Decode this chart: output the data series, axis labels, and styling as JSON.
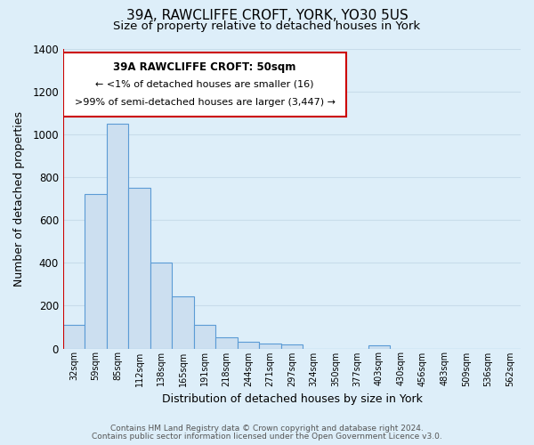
{
  "title": "39A, RAWCLIFFE CROFT, YORK, YO30 5US",
  "subtitle": "Size of property relative to detached houses in York",
  "xlabel": "Distribution of detached houses by size in York",
  "ylabel": "Number of detached properties",
  "categories": [
    "32sqm",
    "59sqm",
    "85sqm",
    "112sqm",
    "138sqm",
    "165sqm",
    "191sqm",
    "218sqm",
    "244sqm",
    "271sqm",
    "297sqm",
    "324sqm",
    "350sqm",
    "377sqm",
    "403sqm",
    "430sqm",
    "456sqm",
    "483sqm",
    "509sqm",
    "536sqm",
    "562sqm"
  ],
  "values": [
    110,
    720,
    1050,
    750,
    400,
    245,
    110,
    50,
    30,
    25,
    20,
    0,
    0,
    0,
    15,
    0,
    0,
    0,
    0,
    0,
    0
  ],
  "bar_color": "#ccdff0",
  "bar_edge_color": "#5b9bd5",
  "highlight_color": "#cc0000",
  "ylim": [
    0,
    1400
  ],
  "yticks": [
    0,
    200,
    400,
    600,
    800,
    1000,
    1200,
    1400
  ],
  "background_color": "#ddeef9",
  "plot_bg_color": "#ddeef9",
  "grid_color": "#c8dcea",
  "annotation_title": "39A RAWCLIFFE CROFT: 50sqm",
  "annotation_line1": "← <1% of detached houses are smaller (16)",
  "annotation_line2": ">99% of semi-detached houses are larger (3,447) →",
  "annotation_box_color": "#ffffff",
  "annotation_border_color": "#cc0000",
  "footer_line1": "Contains HM Land Registry data © Crown copyright and database right 2024.",
  "footer_line2": "Contains public sector information licensed under the Open Government Licence v3.0.",
  "title_fontsize": 11,
  "subtitle_fontsize": 9.5
}
